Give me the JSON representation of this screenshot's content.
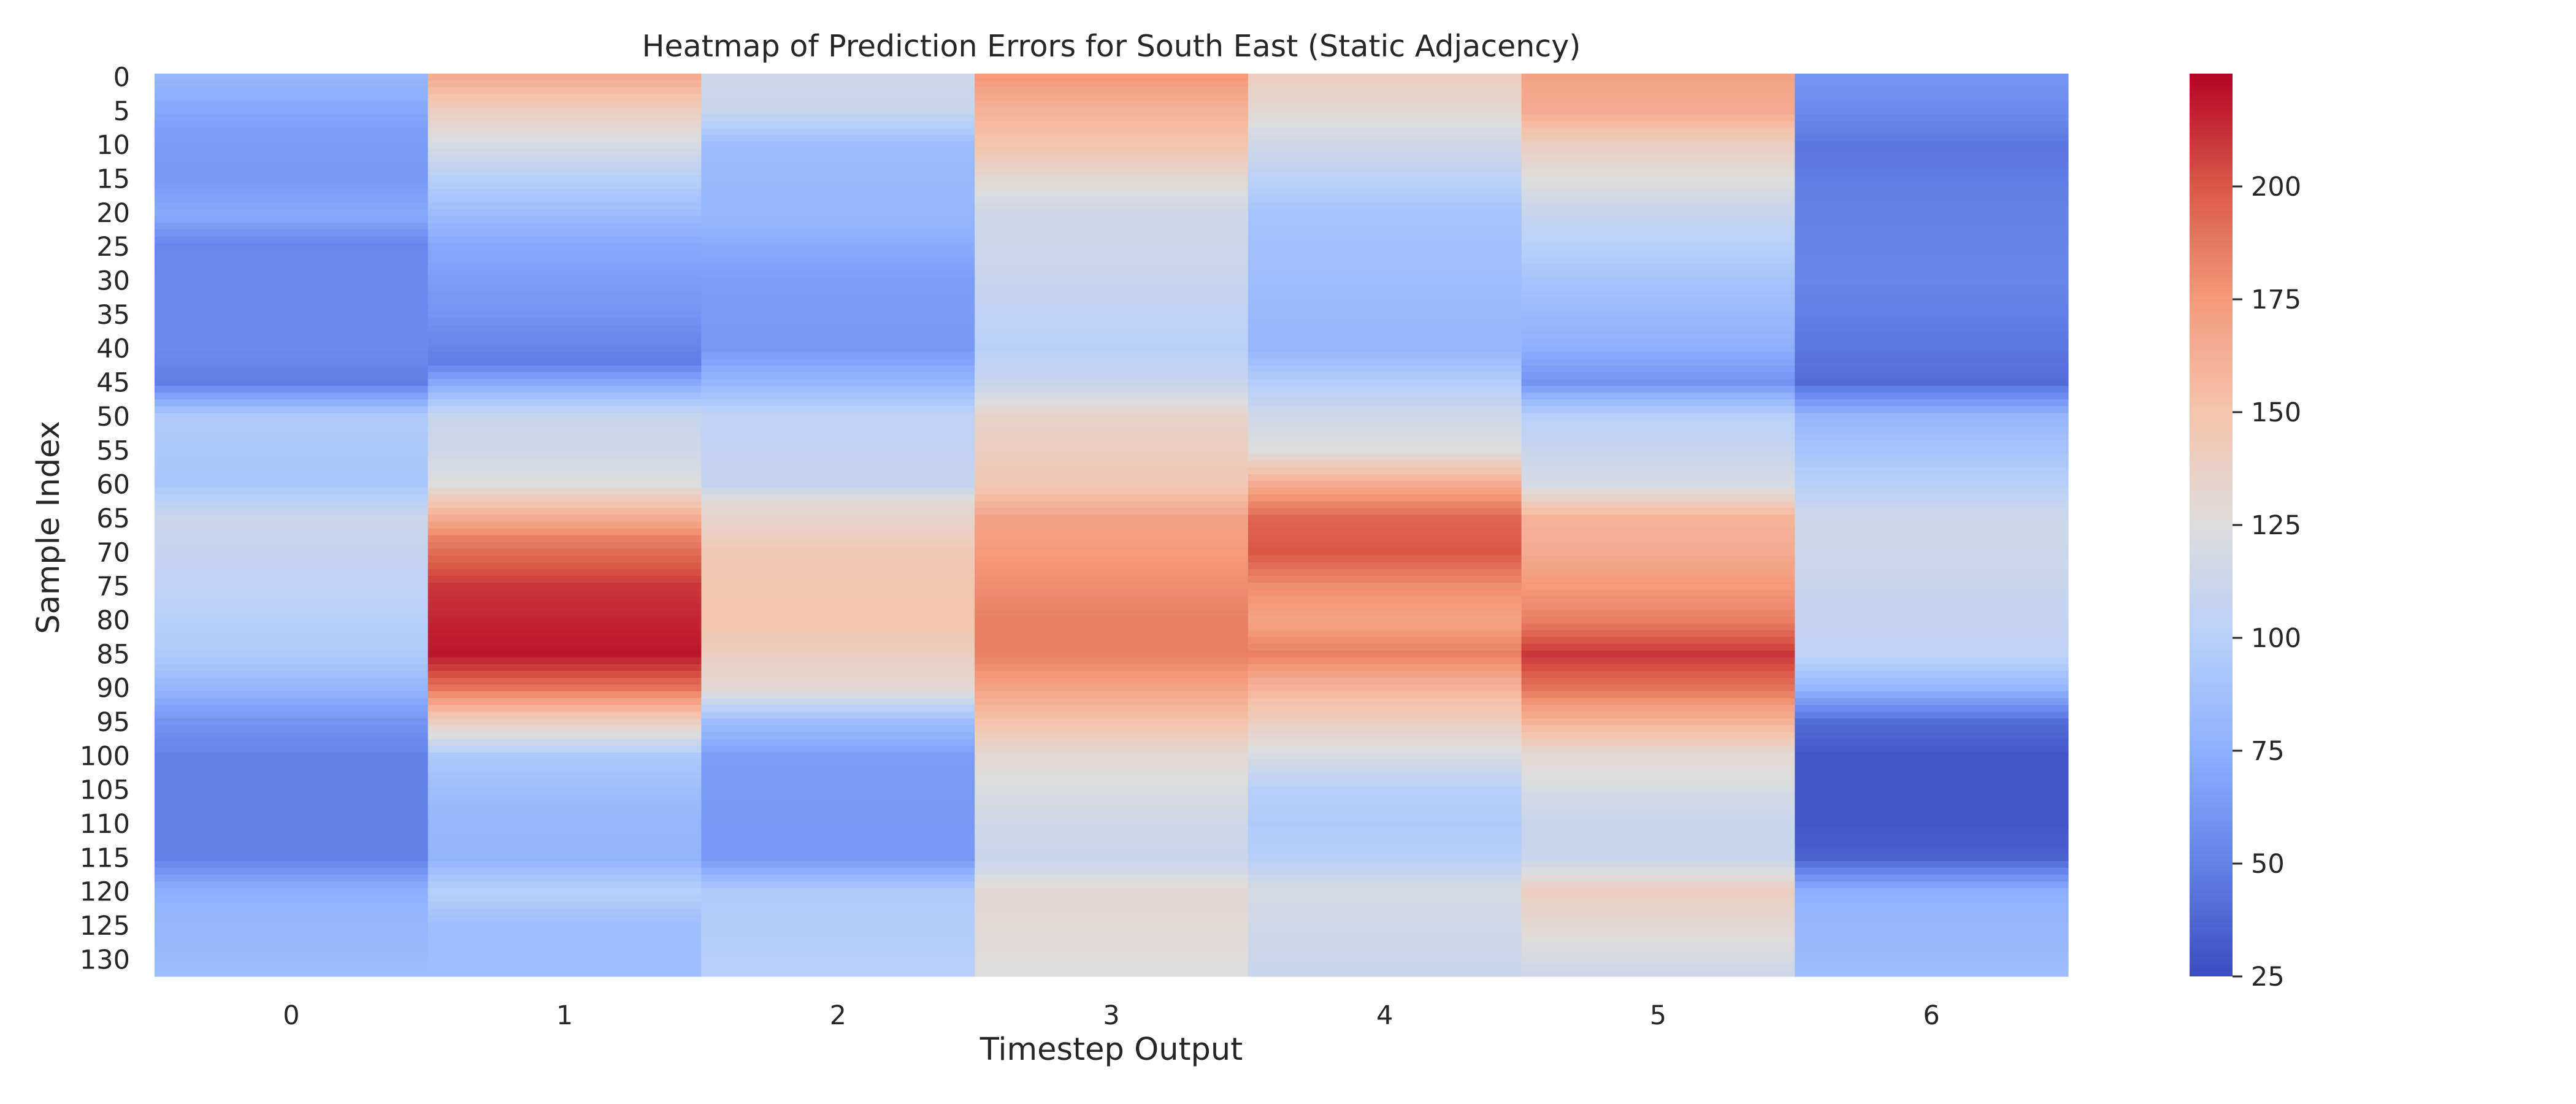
{
  "chart_data": {
    "type": "heatmap",
    "title": "Heatmap of Prediction Errors for South East (Static Adjacency)",
    "xlabel": "Timestep Output",
    "ylabel": "Sample Index",
    "x_categories": [
      "0",
      "1",
      "2",
      "3",
      "4",
      "5",
      "6"
    ],
    "y_tick_labels": [
      "0",
      "5",
      "10",
      "15",
      "20",
      "25",
      "30",
      "35",
      "40",
      "45",
      "50",
      "55",
      "60",
      "65",
      "70",
      "75",
      "80",
      "85",
      "90",
      "95",
      "100",
      "105",
      "110",
      "115",
      "120",
      "125",
      "130"
    ],
    "n_rows": 133,
    "colormap": "coolwarm",
    "colormap_stops": [
      "#3b4cc0",
      "#6282ea",
      "#8db0fe",
      "#b8d0f9",
      "#dddcdc",
      "#f5c4ac",
      "#f49a7b",
      "#d95847",
      "#b40426"
    ],
    "color_range": [
      25,
      225
    ],
    "colorbar_ticks": [
      25,
      50,
      75,
      100,
      125,
      150,
      175,
      200
    ],
    "grid": false,
    "column_profiles": [
      {
        "column": "0",
        "sample_index": [
          0,
          8,
          15,
          20,
          25,
          30,
          40,
          45,
          50,
          60,
          65,
          75,
          85,
          90,
          95,
          100,
          110,
          115,
          120,
          125,
          132
        ],
        "values": [
          80,
          65,
          62,
          72,
          52,
          55,
          55,
          48,
          95,
          92,
          112,
          105,
          95,
          80,
          60,
          50,
          50,
          50,
          75,
          80,
          85
        ]
      },
      {
        "column": "1",
        "sample_index": [
          0,
          5,
          10,
          15,
          20,
          25,
          35,
          42,
          50,
          55,
          60,
          63,
          68,
          75,
          80,
          85,
          90,
          95,
          100,
          105,
          110,
          115,
          120,
          125,
          132
        ],
        "values": [
          165,
          140,
          120,
          100,
          85,
          70,
          60,
          48,
          110,
          115,
          125,
          150,
          185,
          210,
          215,
          220,
          190,
          140,
          95,
          85,
          80,
          78,
          100,
          85,
          85
        ]
      },
      {
        "column": "2",
        "sample_index": [
          0,
          5,
          10,
          20,
          30,
          40,
          45,
          50,
          60,
          63,
          70,
          80,
          90,
          95,
          100,
          110,
          115,
          120,
          132
        ],
        "values": [
          115,
          110,
          85,
          80,
          65,
          62,
          80,
          105,
          108,
          130,
          145,
          150,
          130,
          85,
          65,
          62,
          62,
          95,
          100
        ]
      },
      {
        "column": "3",
        "sample_index": [
          0,
          5,
          10,
          15,
          20,
          30,
          40,
          45,
          50,
          60,
          65,
          70,
          75,
          80,
          85,
          90,
          95,
          100,
          110,
          115,
          120,
          132
        ],
        "values": [
          175,
          160,
          150,
          130,
          115,
          110,
          100,
          110,
          135,
          145,
          170,
          175,
          180,
          185,
          185,
          170,
          150,
          130,
          115,
          110,
          130,
          125
        ]
      },
      {
        "column": "4",
        "sample_index": [
          0,
          5,
          10,
          20,
          30,
          40,
          50,
          55,
          60,
          65,
          70,
          75,
          80,
          85,
          90,
          95,
          100,
          105,
          110,
          115,
          120,
          132
        ],
        "values": [
          140,
          130,
          115,
          90,
          85,
          80,
          115,
          125,
          165,
          195,
          200,
          180,
          170,
          185,
          160,
          140,
          120,
          100,
          95,
          100,
          120,
          110
        ]
      },
      {
        "column": "5",
        "sample_index": [
          0,
          5,
          10,
          20,
          30,
          40,
          45,
          50,
          60,
          65,
          70,
          75,
          80,
          85,
          90,
          95,
          100,
          110,
          115,
          120,
          125,
          132
        ],
        "values": [
          170,
          165,
          140,
          110,
          90,
          75,
          60,
          100,
          120,
          160,
          165,
          175,
          185,
          210,
          190,
          160,
          130,
          110,
          110,
          140,
          130,
          115
        ]
      },
      {
        "column": "6",
        "sample_index": [
          0,
          5,
          10,
          20,
          30,
          40,
          45,
          50,
          60,
          65,
          75,
          85,
          90,
          95,
          100,
          110,
          115,
          120,
          125,
          132
        ],
        "values": [
          60,
          55,
          45,
          50,
          52,
          45,
          40,
          80,
          100,
          115,
          110,
          105,
          80,
          40,
          30,
          30,
          35,
          75,
          80,
          85
        ]
      }
    ]
  }
}
